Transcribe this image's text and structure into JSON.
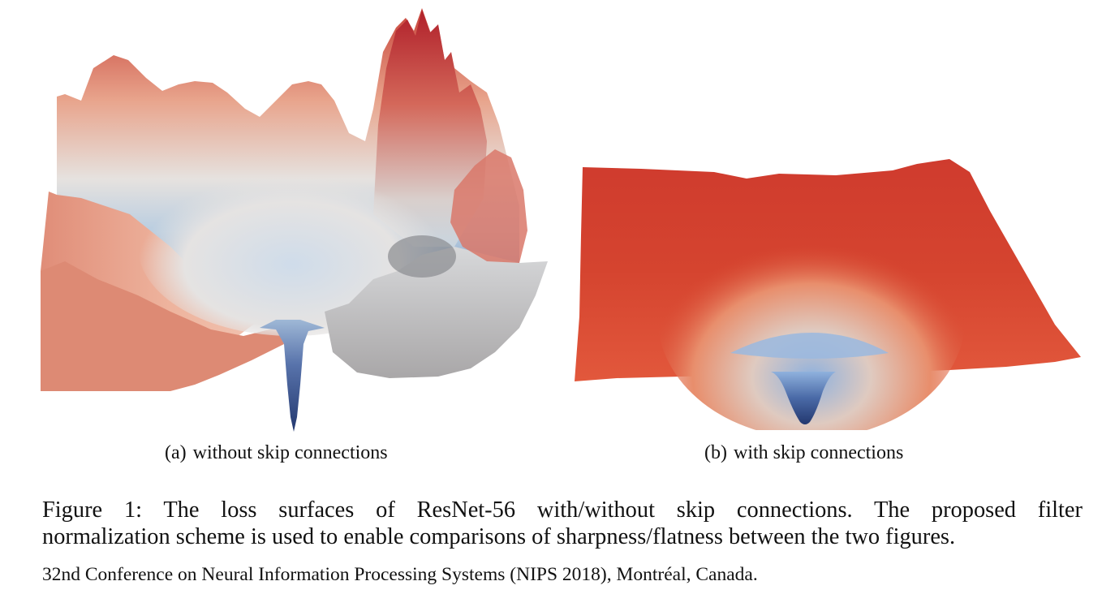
{
  "subfigures": [
    {
      "label": "(a)",
      "caption": "without skip connections"
    },
    {
      "label": "(b)",
      "caption": "with skip connections"
    }
  ],
  "figure_caption": {
    "line1": "Figure 1: The loss surfaces of ResNet-56 with/without skip connections.  The proposed filter",
    "line2": "normalization scheme is used to enable comparisons of sharpness/flatness between the two figures."
  },
  "conference_note": "32nd Conference on Neural Information Processing Systems (NIPS 2018), Montréal, Canada.",
  "colors": {
    "surface_high": "#c8312c",
    "surface_mid": "#e8a48c",
    "surface_neutral": "#dfe3e8",
    "surface_low": "#2a3f7e"
  }
}
